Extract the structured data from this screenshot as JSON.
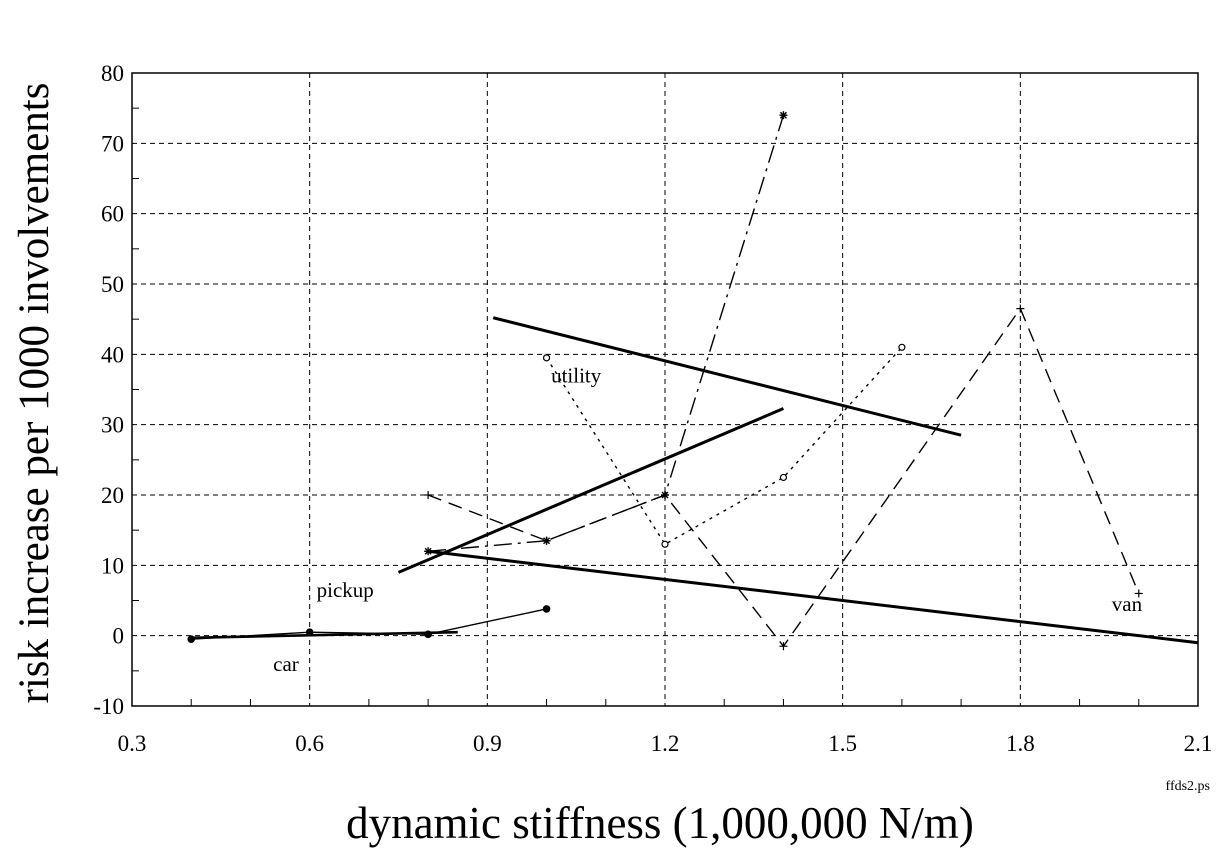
{
  "chart_data": {
    "type": "line",
    "title": "",
    "xlabel": "dynamic stiffness (1,000,000 N/m)",
    "ylabel": "risk increase per 1000 involvements",
    "xlim": [
      0.3,
      2.1
    ],
    "ylim": [
      -10,
      80
    ],
    "xticks": [
      0.3,
      0.6,
      0.9,
      1.2,
      1.5,
      1.8,
      2.1
    ],
    "xtick_labels": [
      "0.3",
      "0.6",
      "0.9",
      "1.2",
      "1.5",
      "1.8",
      "2.1"
    ],
    "yticks": [
      -10,
      0,
      10,
      20,
      30,
      40,
      50,
      60,
      70,
      80
    ],
    "ytick_labels": [
      "-10",
      "0",
      "10",
      "20",
      "30",
      "40",
      "50",
      "60",
      "70",
      "80"
    ],
    "grid": true,
    "footnote": "ffds2.ps",
    "series": [
      {
        "name": "car",
        "style": "solid-thin",
        "marker": "dot",
        "x": [
          0.4,
          0.6,
          0.8,
          1.0
        ],
        "y": [
          -0.5,
          0.5,
          0.2,
          3.8
        ]
      },
      {
        "name": "utility",
        "style": "dotted",
        "marker": "circle",
        "x": [
          1.0,
          1.2,
          1.4,
          1.6
        ],
        "y": [
          39.5,
          13,
          22.5,
          41
        ]
      },
      {
        "name": "pickup",
        "style": "dashdot",
        "marker": "star",
        "x": [
          0.8,
          1.0,
          1.2,
          1.4
        ],
        "y": [
          12,
          13.5,
          20,
          74
        ]
      },
      {
        "name": "van",
        "style": "dashed",
        "marker": "plus",
        "x": [
          0.8,
          1.0,
          1.2,
          1.4,
          1.8,
          2.0
        ],
        "y": [
          20,
          13.5,
          20,
          -1.5,
          46.5,
          6
        ]
      }
    ],
    "trend_lines": [
      {
        "series": "utility",
        "x": [
          0.91,
          1.7
        ],
        "y": [
          45.2,
          28.5
        ]
      },
      {
        "series": "pickup",
        "x": [
          0.75,
          1.4
        ],
        "y": [
          9,
          32.3
        ]
      },
      {
        "series": "van",
        "x": [
          0.8,
          2.1
        ],
        "y": [
          12,
          -1
        ]
      },
      {
        "series": "car",
        "x": [
          0.4,
          0.85
        ],
        "y": [
          -0.3,
          0.5
        ]
      }
    ],
    "series_labels": [
      {
        "text": "car",
        "x": 0.56,
        "y": -5
      },
      {
        "text": "utility",
        "x": 1.05,
        "y": 36
      },
      {
        "text": "pickup",
        "x": 0.66,
        "y": 5.5
      },
      {
        "text": "van",
        "x": 1.98,
        "y": 3.5
      }
    ]
  }
}
